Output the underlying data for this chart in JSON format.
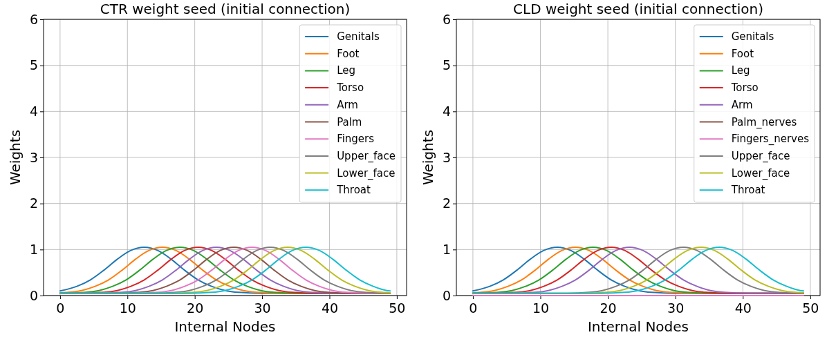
{
  "chart_data": [
    {
      "type": "line",
      "title": "CTR weight seed (initial connection)",
      "xlabel": "Internal Nodes",
      "ylabel": "Weights",
      "xlim": [
        -2.45,
        51.45
      ],
      "xticks": [
        0,
        10,
        20,
        30,
        40,
        50
      ],
      "ylim": [
        0,
        6
      ],
      "yticks": [
        0,
        1,
        2,
        3,
        4,
        5,
        6
      ],
      "grid": true,
      "legend": "top right",
      "series": [
        {
          "name": "Genitals",
          "color": "#1f77b4",
          "x": [
            0,
            2.5,
            4.5,
            6.5,
            8.5,
            10.5,
            12.5,
            14.5,
            16.5,
            18.5,
            20.5,
            22.5,
            24.5,
            26.5,
            30,
            49
          ],
          "values": [
            0.1,
            0.2,
            0.34,
            0.55,
            0.79,
            0.98,
            1.05,
            0.98,
            0.79,
            0.55,
            0.34,
            0.2,
            0.11,
            0.07,
            0.05,
            0.05
          ]
        },
        {
          "name": "Foot",
          "color": "#ff7f0e",
          "x": [
            0,
            1.2,
            3.2,
            5.2,
            7.2,
            9.2,
            11.2,
            13.2,
            15.2,
            17.2,
            19.2,
            21.2,
            23.2,
            25.2,
            27.2,
            29.2,
            33,
            49
          ],
          "values": [
            0.06,
            0.07,
            0.11,
            0.2,
            0.34,
            0.55,
            0.79,
            0.98,
            1.05,
            0.98,
            0.79,
            0.55,
            0.34,
            0.2,
            0.11,
            0.07,
            0.05,
            0.05
          ]
        },
        {
          "name": "Leg",
          "color": "#2ca02c",
          "x": [
            0,
            3.8,
            5.8,
            7.8,
            9.8,
            11.8,
            13.8,
            15.8,
            17.8,
            19.8,
            21.8,
            23.8,
            25.8,
            27.8,
            29.8,
            31.8,
            35,
            49
          ],
          "values": [
            0.05,
            0.07,
            0.11,
            0.2,
            0.34,
            0.55,
            0.79,
            0.98,
            1.05,
            0.98,
            0.79,
            0.55,
            0.34,
            0.2,
            0.11,
            0.07,
            0.05,
            0.05
          ]
        },
        {
          "name": "Torso",
          "color": "#d62728",
          "x": [
            0,
            6.5,
            8.5,
            10.5,
            12.5,
            14.5,
            16.5,
            18.5,
            20.5,
            22.5,
            24.5,
            26.5,
            28.5,
            30.5,
            32.5,
            34.5,
            38,
            49
          ],
          "values": [
            0.05,
            0.07,
            0.11,
            0.2,
            0.34,
            0.55,
            0.79,
            0.98,
            1.05,
            0.98,
            0.79,
            0.55,
            0.34,
            0.2,
            0.11,
            0.07,
            0.05,
            0.05
          ]
        },
        {
          "name": "Arm",
          "color": "#9467bd",
          "x": [
            0,
            5,
            9.2,
            11.2,
            13.2,
            15.2,
            17.2,
            19.2,
            21.2,
            23.2,
            25.2,
            27.2,
            29.2,
            31.2,
            33.2,
            35.2,
            37.2,
            41,
            49
          ],
          "values": [
            0.05,
            0.05,
            0.07,
            0.11,
            0.2,
            0.34,
            0.55,
            0.79,
            0.98,
            1.05,
            0.98,
            0.79,
            0.55,
            0.34,
            0.2,
            0.11,
            0.07,
            0.05,
            0.05
          ]
        },
        {
          "name": "Palm",
          "color": "#8c564b",
          "x": [
            0,
            8,
            11.8,
            13.8,
            15.8,
            17.8,
            19.8,
            21.8,
            23.8,
            25.8,
            27.8,
            29.8,
            31.8,
            33.8,
            35.8,
            37.8,
            39.8,
            43,
            49
          ],
          "values": [
            0.05,
            0.05,
            0.07,
            0.11,
            0.2,
            0.34,
            0.55,
            0.79,
            0.98,
            1.05,
            0.98,
            0.79,
            0.55,
            0.34,
            0.2,
            0.11,
            0.07,
            0.05,
            0.05
          ]
        },
        {
          "name": "Fingers",
          "color": "#e377c2",
          "x": [
            0,
            11,
            14.5,
            16.5,
            18.5,
            20.5,
            22.5,
            24.5,
            26.5,
            28.5,
            30.5,
            32.5,
            34.5,
            36.5,
            38.5,
            40.5,
            42.5,
            46,
            49
          ],
          "values": [
            0.05,
            0.05,
            0.07,
            0.11,
            0.2,
            0.34,
            0.55,
            0.79,
            0.98,
            1.05,
            0.98,
            0.79,
            0.55,
            0.34,
            0.2,
            0.11,
            0.07,
            0.05,
            0.05
          ]
        },
        {
          "name": "Upper_face",
          "color": "#7f7f7f",
          "x": [
            0,
            14,
            17.2,
            19.2,
            21.2,
            23.2,
            25.2,
            27.2,
            29.2,
            31.2,
            33.2,
            35.2,
            37.2,
            39.2,
            41.2,
            43.2,
            45.2,
            49
          ],
          "values": [
            0.05,
            0.05,
            0.07,
            0.11,
            0.2,
            0.34,
            0.55,
            0.79,
            0.98,
            1.05,
            0.98,
            0.79,
            0.55,
            0.34,
            0.2,
            0.11,
            0.07,
            0.05
          ]
        },
        {
          "name": "Lower_face",
          "color": "#bcbd22",
          "x": [
            0,
            16,
            19.8,
            21.8,
            23.8,
            25.8,
            27.8,
            29.8,
            31.8,
            33.8,
            35.8,
            37.8,
            39.8,
            41.8,
            43.8,
            45.8,
            47.8,
            49
          ],
          "values": [
            0.05,
            0.05,
            0.07,
            0.11,
            0.2,
            0.34,
            0.55,
            0.79,
            0.98,
            1.05,
            0.98,
            0.79,
            0.55,
            0.34,
            0.2,
            0.11,
            0.07,
            0.06
          ]
        },
        {
          "name": "Throat",
          "color": "#17becf",
          "x": [
            0,
            19,
            22.5,
            24.5,
            26.5,
            28.5,
            30.5,
            32.5,
            34.5,
            36.5,
            38.5,
            40.5,
            42.5,
            44.5,
            46.5,
            48.5,
            49
          ],
          "values": [
            0.05,
            0.05,
            0.07,
            0.11,
            0.2,
            0.34,
            0.55,
            0.79,
            0.98,
            1.05,
            0.98,
            0.79,
            0.55,
            0.34,
            0.2,
            0.11,
            0.1
          ]
        }
      ]
    },
    {
      "type": "line",
      "title": "CLD weight seed (initial connection)",
      "xlabel": "Internal Nodes",
      "ylabel": "Weights",
      "xlim": [
        -2.45,
        51.45
      ],
      "xticks": [
        0,
        10,
        20,
        30,
        40,
        50
      ],
      "ylim": [
        0,
        6
      ],
      "yticks": [
        0,
        1,
        2,
        3,
        4,
        5,
        6
      ],
      "grid": true,
      "legend": "top right",
      "series": [
        {
          "name": "Genitals",
          "color": "#1f77b4",
          "x": [
            0,
            2.5,
            4.5,
            6.5,
            8.5,
            10.5,
            12.5,
            14.5,
            16.5,
            18.5,
            20.5,
            22.5,
            24.5,
            26.5,
            30,
            49
          ],
          "values": [
            0.1,
            0.2,
            0.34,
            0.55,
            0.79,
            0.98,
            1.05,
            0.98,
            0.79,
            0.55,
            0.34,
            0.2,
            0.11,
            0.07,
            0.05,
            0.05
          ]
        },
        {
          "name": "Foot",
          "color": "#ff7f0e",
          "x": [
            0,
            1.2,
            3.2,
            5.2,
            7.2,
            9.2,
            11.2,
            13.2,
            15.2,
            17.2,
            19.2,
            21.2,
            23.2,
            25.2,
            27.2,
            29.2,
            33,
            49
          ],
          "values": [
            0.06,
            0.07,
            0.11,
            0.2,
            0.34,
            0.55,
            0.79,
            0.98,
            1.05,
            0.98,
            0.79,
            0.55,
            0.34,
            0.2,
            0.11,
            0.07,
            0.05,
            0.05
          ]
        },
        {
          "name": "Leg",
          "color": "#2ca02c",
          "x": [
            0,
            3.8,
            5.8,
            7.8,
            9.8,
            11.8,
            13.8,
            15.8,
            17.8,
            19.8,
            21.8,
            23.8,
            25.8,
            27.8,
            29.8,
            31.8,
            35,
            49
          ],
          "values": [
            0.05,
            0.07,
            0.11,
            0.2,
            0.34,
            0.55,
            0.79,
            0.98,
            1.05,
            0.98,
            0.79,
            0.55,
            0.34,
            0.2,
            0.11,
            0.07,
            0.05,
            0.05
          ]
        },
        {
          "name": "Torso",
          "color": "#d62728",
          "x": [
            0,
            6.5,
            8.5,
            10.5,
            12.5,
            14.5,
            16.5,
            18.5,
            20.5,
            22.5,
            24.5,
            26.5,
            28.5,
            30.5,
            32.5,
            34.5,
            38,
            49
          ],
          "values": [
            0.05,
            0.07,
            0.11,
            0.2,
            0.34,
            0.55,
            0.79,
            0.98,
            1.05,
            0.98,
            0.79,
            0.55,
            0.34,
            0.2,
            0.11,
            0.07,
            0.05,
            0.05
          ]
        },
        {
          "name": "Arm",
          "color": "#9467bd",
          "x": [
            0,
            5,
            9.2,
            11.2,
            13.2,
            15.2,
            17.2,
            19.2,
            21.2,
            23.2,
            25.2,
            27.2,
            29.2,
            31.2,
            33.2,
            35.2,
            37.2,
            41,
            49
          ],
          "values": [
            0.05,
            0.05,
            0.07,
            0.11,
            0.2,
            0.34,
            0.55,
            0.79,
            0.98,
            1.05,
            0.98,
            0.79,
            0.55,
            0.34,
            0.2,
            0.11,
            0.07,
            0.05,
            0.05
          ]
        },
        {
          "name": "Palm_nerves",
          "color": "#8c564b",
          "values": [
            null,
            null
          ]
        },
        {
          "name": "Fingers_nerves",
          "color": "#e377c2",
          "x": [
            0,
            49
          ],
          "values": [
            0,
            0
          ]
        },
        {
          "name": "Upper_face",
          "color": "#7f7f7f",
          "x": [
            0,
            14,
            17.2,
            19.2,
            21.2,
            23.2,
            25.2,
            27.2,
            29.2,
            31.2,
            33.2,
            35.2,
            37.2,
            39.2,
            41.2,
            43.2,
            45.2,
            49
          ],
          "values": [
            0.05,
            0.05,
            0.07,
            0.11,
            0.2,
            0.34,
            0.55,
            0.79,
            0.98,
            1.05,
            0.98,
            0.79,
            0.55,
            0.34,
            0.2,
            0.11,
            0.07,
            0.05
          ]
        },
        {
          "name": "Lower_face",
          "color": "#bcbd22",
          "x": [
            0,
            16,
            19.8,
            21.8,
            23.8,
            25.8,
            27.8,
            29.8,
            31.8,
            33.8,
            35.8,
            37.8,
            39.8,
            41.8,
            43.8,
            45.8,
            47.8,
            49
          ],
          "values": [
            0.05,
            0.05,
            0.07,
            0.11,
            0.2,
            0.34,
            0.55,
            0.79,
            0.98,
            1.05,
            0.98,
            0.79,
            0.55,
            0.34,
            0.2,
            0.11,
            0.07,
            0.06
          ]
        },
        {
          "name": "Throat",
          "color": "#17becf",
          "x": [
            0,
            19,
            22.5,
            24.5,
            26.5,
            28.5,
            30.5,
            32.5,
            34.5,
            36.5,
            38.5,
            40.5,
            42.5,
            44.5,
            46.5,
            48.5,
            49
          ],
          "values": [
            0.05,
            0.05,
            0.07,
            0.11,
            0.2,
            0.34,
            0.55,
            0.79,
            0.98,
            1.05,
            0.98,
            0.79,
            0.55,
            0.34,
            0.2,
            0.11,
            0.1
          ]
        }
      ]
    }
  ]
}
